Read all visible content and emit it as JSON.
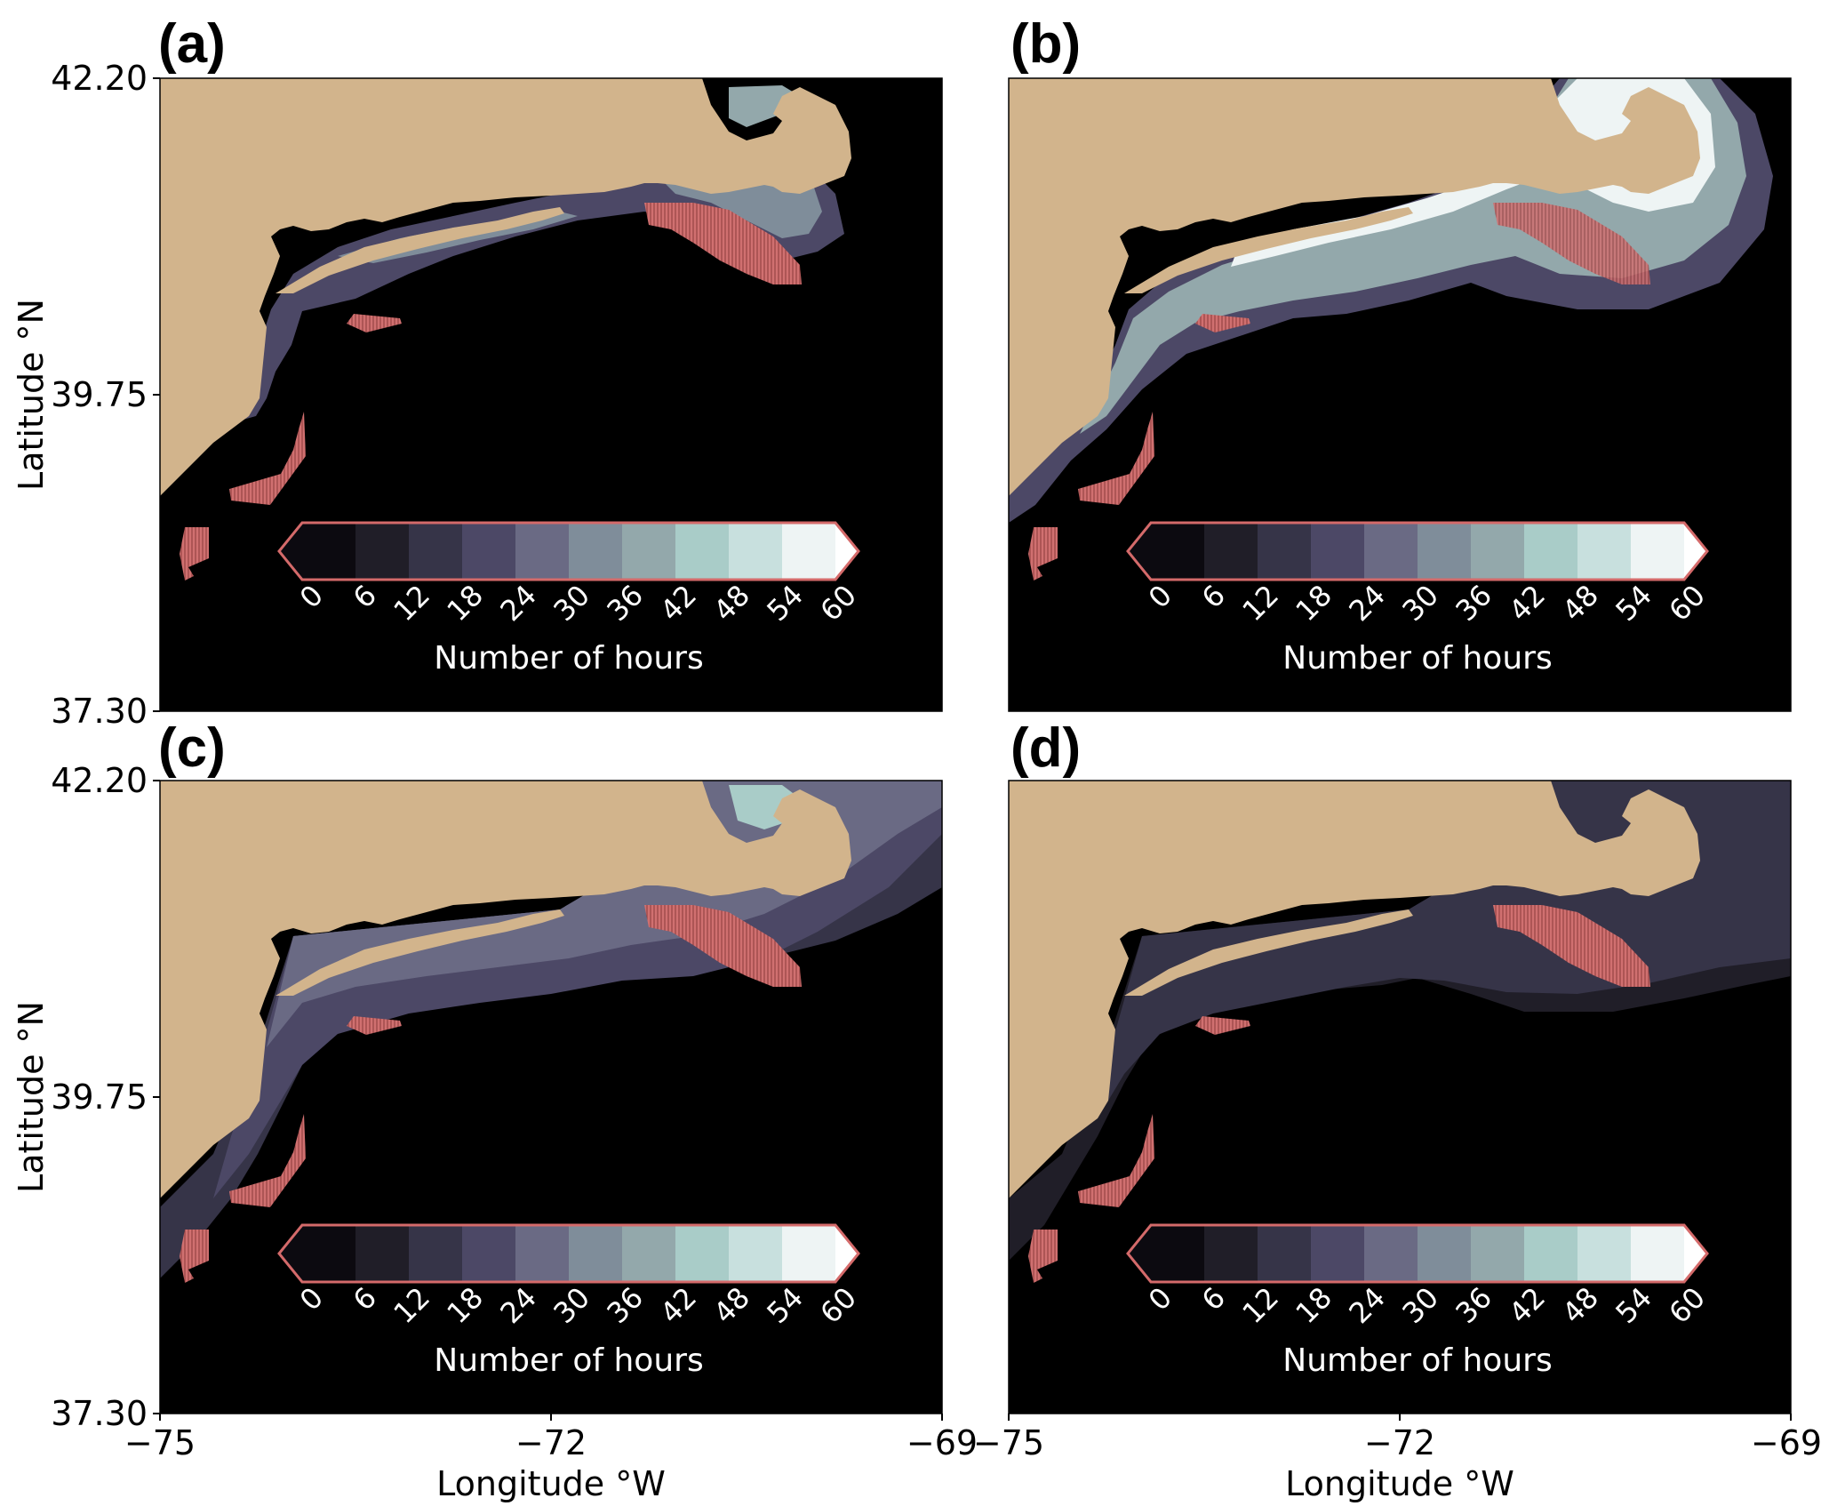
{
  "panel_labels": [
    "(a)",
    "(b)",
    "(c)",
    "(d)"
  ],
  "latitude": {
    "label": "Latitude °N",
    "ticks": [
      "42.20",
      "39.75",
      "37.30"
    ],
    "range": [
      37.3,
      42.2
    ]
  },
  "longitude": {
    "label": "Longitude °W",
    "ticks": [
      "−75",
      "−72",
      "−69"
    ],
    "range": [
      -75,
      -69
    ]
  },
  "colorbar": {
    "label": "Number of hours",
    "ticks": [
      "0",
      "6",
      "12",
      "18",
      "24",
      "30",
      "36",
      "42",
      "48",
      "54",
      "60"
    ],
    "extend": "both",
    "outline_color": "#d46a6a",
    "colors": [
      "#0c0a10",
      "#201e28",
      "#363448",
      "#4c4866",
      "#6a6a84",
      "#7f8d9a",
      "#93a8ab",
      "#a9ccc8",
      "#c8e0de",
      "#eef4f4",
      "#ffffff"
    ]
  },
  "colors": {
    "land": "#d2b48c",
    "ocean_background": "#000000",
    "wind_lease_areas": "#b85a5a"
  }
}
